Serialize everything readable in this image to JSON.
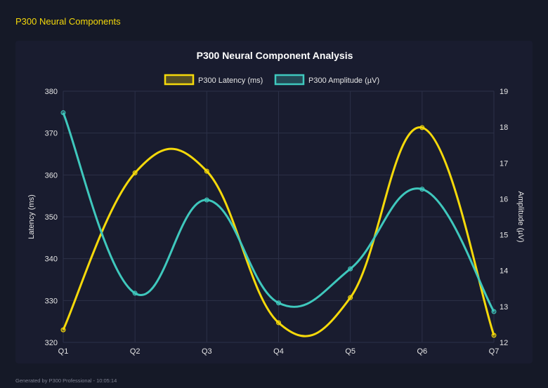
{
  "header": {
    "title": "P300 Neural Components"
  },
  "footer": {
    "text": "Generated by P300 Professional - 10:05:14"
  },
  "chart_data": {
    "type": "line",
    "title": "P300 Neural Component Analysis",
    "categories": [
      "Q1",
      "Q2",
      "Q3",
      "Q4",
      "Q5",
      "Q6",
      "Q7"
    ],
    "series": [
      {
        "name": "P300 Latency (ms)",
        "axis": "left",
        "color": "#f5d90a",
        "values": [
          323.0,
          360.5,
          360.9,
          324.7,
          330.7,
          371.3,
          321.7
        ]
      },
      {
        "name": "P300 Amplitude (µV)",
        "axis": "right",
        "color": "#3fc8bd",
        "values": [
          18.4,
          13.37,
          15.97,
          13.1,
          14.05,
          16.27,
          12.86
        ]
      }
    ],
    "ylabel": "Latency (ms)",
    "y2label": "Amplitude (µV)",
    "ylim": [
      320,
      380
    ],
    "yticks": [
      "320",
      "330",
      "340",
      "350",
      "360",
      "370",
      "380"
    ],
    "y2lim": [
      12,
      19
    ],
    "y2ticks": [
      "12",
      "13",
      "14",
      "15",
      "16",
      "17",
      "18",
      "19"
    ],
    "grid": true,
    "legend": "top",
    "smooth": true
  }
}
